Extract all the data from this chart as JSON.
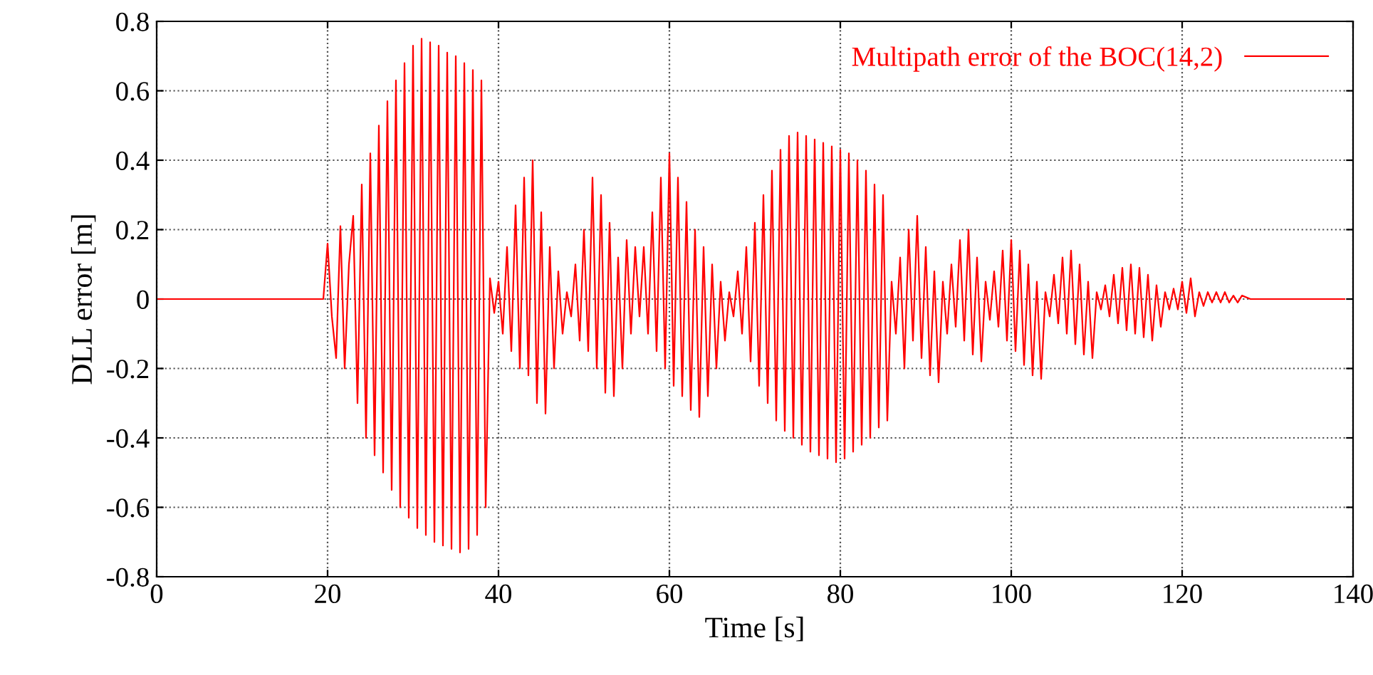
{
  "chart_data": {
    "type": "line",
    "xlabel": "Time [s]",
    "ylabel": "DLL error [m]",
    "xlim": [
      0,
      140
    ],
    "xticks": [
      0,
      20,
      40,
      60,
      80,
      100,
      120,
      140
    ],
    "ylim": [
      -0.8,
      0.8
    ],
    "yticks": [
      -0.8,
      -0.6,
      -0.4,
      -0.2,
      0,
      0.2,
      0.4,
      0.6,
      0.8
    ],
    "grid": true,
    "legend": "top right",
    "line_style": "solid",
    "marker": "none",
    "series": [
      {
        "name": "Multipath error of the BOC(14,2)",
        "color": "#ff0000",
        "x": [
          0,
          19.5,
          20,
          20.5,
          21,
          21.5,
          22,
          22.5,
          23,
          23.5,
          24,
          24.5,
          25,
          25.5,
          26,
          26.5,
          27,
          27.5,
          28,
          28.5,
          29,
          29.5,
          30,
          30.5,
          31,
          31.5,
          32,
          32.5,
          33,
          33.5,
          34,
          34.5,
          35,
          35.5,
          36,
          36.5,
          37,
          37.5,
          38,
          38.5,
          39,
          39.5,
          40,
          40.5,
          41,
          41.5,
          42,
          42.5,
          43,
          43.5,
          44,
          44.5,
          45,
          45.5,
          46,
          46.5,
          47,
          47.5,
          48,
          48.5,
          49,
          49.5,
          50,
          50.5,
          51,
          51.5,
          52,
          52.5,
          53,
          53.5,
          54,
          54.5,
          55,
          55.5,
          56,
          56.5,
          57,
          57.5,
          58,
          58.5,
          59,
          59.5,
          60,
          60.5,
          61,
          61.5,
          62,
          62.5,
          63,
          63.5,
          64,
          64.5,
          65,
          65.5,
          66,
          66.5,
          67,
          67.5,
          68,
          68.5,
          69,
          69.5,
          70,
          70.5,
          71,
          71.5,
          72,
          72.5,
          73,
          73.5,
          74,
          74.5,
          75,
          75.5,
          76,
          76.5,
          77,
          77.5,
          78,
          78.5,
          79,
          79.5,
          80,
          80.5,
          81,
          81.5,
          82,
          82.5,
          83,
          83.5,
          84,
          84.5,
          85,
          85.5,
          86,
          86.5,
          87,
          87.5,
          88,
          88.5,
          89,
          89.5,
          90,
          90.5,
          91,
          91.5,
          92,
          92.5,
          93,
          93.5,
          94,
          94.5,
          95,
          95.5,
          96,
          96.5,
          97,
          97.5,
          98,
          98.5,
          99,
          99.5,
          100,
          100.5,
          101,
          101.5,
          102,
          102.5,
          103,
          103.5,
          104,
          104.5,
          105,
          105.5,
          106,
          106.5,
          107,
          107.5,
          108,
          108.5,
          109,
          109.5,
          110,
          110.5,
          111,
          111.5,
          112,
          112.5,
          113,
          113.5,
          114,
          114.5,
          115,
          115.5,
          116,
          116.5,
          117,
          117.5,
          118,
          118.5,
          119,
          119.5,
          120,
          120.5,
          121,
          121.5,
          122,
          122.5,
          123,
          123.5,
          124,
          124.5,
          125,
          125.5,
          126,
          126.5,
          127,
          128,
          139
        ],
        "values": [
          0,
          0,
          0.16,
          -0.05,
          -0.17,
          0.21,
          -0.2,
          0.1,
          0.24,
          -0.3,
          0.33,
          -0.4,
          0.42,
          -0.45,
          0.5,
          -0.5,
          0.57,
          -0.55,
          0.63,
          -0.6,
          0.68,
          -0.63,
          0.73,
          -0.66,
          0.75,
          -0.68,
          0.74,
          -0.7,
          0.73,
          -0.71,
          0.71,
          -0.72,
          0.7,
          -0.73,
          0.68,
          -0.72,
          0.66,
          -0.68,
          0.63,
          -0.6,
          0.06,
          -0.04,
          0.05,
          -0.1,
          0.15,
          -0.15,
          0.27,
          -0.2,
          0.35,
          -0.22,
          0.4,
          -0.3,
          0.25,
          -0.33,
          0.15,
          -0.2,
          0.08,
          -0.1,
          0.02,
          -0.05,
          0.1,
          -0.12,
          0.2,
          -0.15,
          0.35,
          -0.2,
          0.3,
          -0.27,
          0.22,
          -0.28,
          0.12,
          -0.2,
          0.17,
          -0.1,
          0.15,
          -0.05,
          0.15,
          -0.1,
          0.25,
          -0.15,
          0.35,
          -0.2,
          0.42,
          -0.25,
          0.35,
          -0.28,
          0.28,
          -0.32,
          0.2,
          -0.34,
          0.15,
          -0.28,
          0.1,
          -0.2,
          0.05,
          -0.12,
          0.02,
          -0.05,
          0.08,
          -0.1,
          0.15,
          -0.18,
          0.22,
          -0.25,
          0.3,
          -0.3,
          0.37,
          -0.35,
          0.43,
          -0.38,
          0.47,
          -0.4,
          0.48,
          -0.42,
          0.47,
          -0.44,
          0.46,
          -0.45,
          0.45,
          -0.46,
          0.44,
          -0.47,
          0.43,
          -0.46,
          0.42,
          -0.44,
          0.4,
          -0.42,
          0.37,
          -0.4,
          0.33,
          -0.37,
          0.3,
          -0.35,
          0.05,
          -0.1,
          0.12,
          -0.2,
          0.2,
          -0.12,
          0.24,
          -0.17,
          0.15,
          -0.22,
          0.08,
          -0.24,
          0.05,
          -0.1,
          0.1,
          -0.08,
          0.17,
          -0.12,
          0.2,
          -0.16,
          0.12,
          -0.18,
          0.05,
          -0.06,
          0.08,
          -0.08,
          0.14,
          -0.12,
          0.17,
          -0.15,
          0.14,
          -0.19,
          0.1,
          -0.22,
          0.05,
          -0.23,
          0.02,
          -0.05,
          0.07,
          -0.07,
          0.12,
          -0.1,
          0.14,
          -0.13,
          0.1,
          -0.16,
          0.05,
          -0.17,
          0.02,
          -0.03,
          0.04,
          -0.05,
          0.07,
          -0.07,
          0.09,
          -0.09,
          0.1,
          -0.1,
          0.09,
          -0.11,
          0.07,
          -0.12,
          0.04,
          -0.08,
          0.02,
          -0.03,
          0.03,
          -0.03,
          0.05,
          -0.04,
          0.06,
          -0.05,
          0.02,
          -0.02,
          0.02,
          -0.01,
          0.02,
          -0.01,
          0.02,
          -0.01,
          0.01,
          -0.01,
          0.01,
          0,
          0
        ]
      }
    ]
  }
}
